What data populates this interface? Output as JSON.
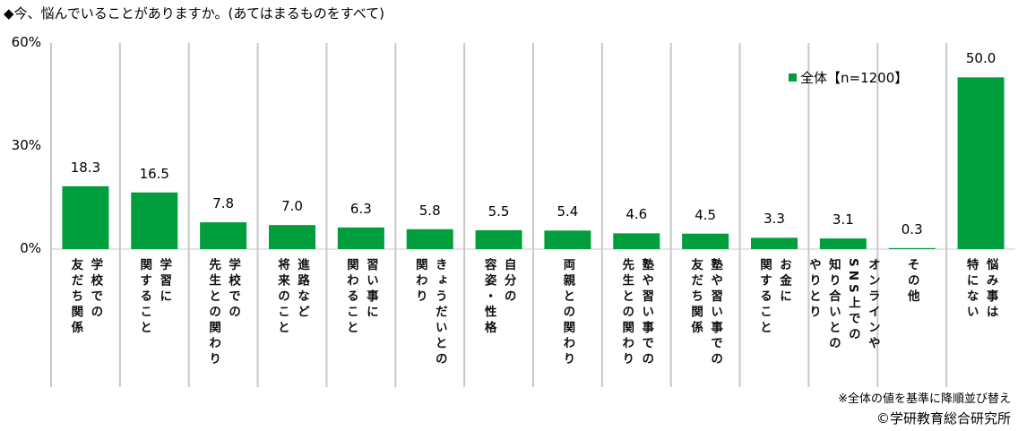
{
  "title": "◆今、悩んでいることがありますか。(あてはまるものをすべて)",
  "chart_data": {
    "type": "bar",
    "title": "◆今、悩んでいることがありますか。(あてはまるものをすべて)",
    "categories": [
      [
        "学校での",
        "友だち関係"
      ],
      [
        "学習に",
        "関すること"
      ],
      [
        "学校での",
        "先生との関わり"
      ],
      [
        "進路など",
        "将来のこと"
      ],
      [
        "習い事に",
        "関わること"
      ],
      [
        "きょうだいとの",
        "関わり"
      ],
      [
        "自分の",
        "容姿・性格"
      ],
      [
        "両親との関わり"
      ],
      [
        "塾や習い事での",
        "先生との関わり"
      ],
      [
        "塾や習い事での",
        "友だち関係"
      ],
      [
        "お金に",
        "関すること"
      ],
      [
        "オンラインや",
        "SNS上での",
        "知り合いとの",
        "やりとり"
      ],
      [
        "その他"
      ],
      [
        "悩み事は",
        "特にない"
      ]
    ],
    "series": [
      {
        "name": "全体【n=1200】",
        "values": [
          18.3,
          16.5,
          7.8,
          7.0,
          6.3,
          5.8,
          5.5,
          5.4,
          4.6,
          4.5,
          3.3,
          3.1,
          0.3,
          50.0
        ],
        "color": "#009e3c"
      }
    ],
    "yticks": [
      "0%",
      "30%",
      "60%"
    ],
    "ylim": [
      0,
      60
    ],
    "grid": false,
    "legend": "top-right"
  },
  "note": "※全体の値を基準に降順並び替え",
  "copyright": "©学研教育総合研究所"
}
